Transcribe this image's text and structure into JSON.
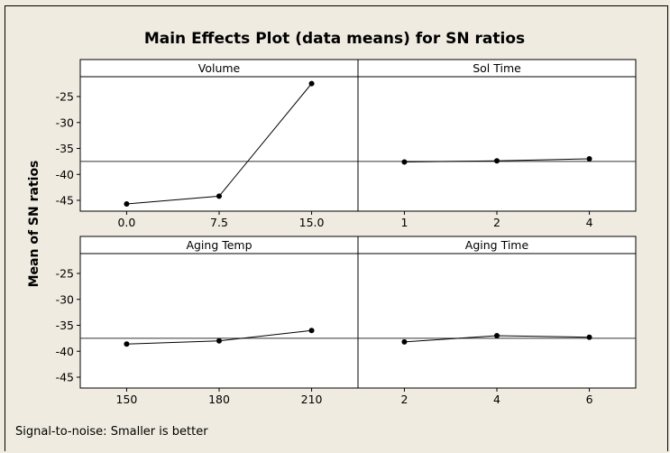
{
  "chart_data": {
    "type": "line",
    "title": "Main Effects Plot (data means) for SN ratios",
    "ylabel": "Mean of SN ratios",
    "footnote": "Signal-to-noise: Smaller is better",
    "ylim": [
      -47.5,
      -21
    ],
    "yticks": [
      -25,
      -30,
      -35,
      -40,
      -45
    ],
    "ytick_labels": [
      "-25",
      "-30",
      "-35",
      "-40",
      "-45"
    ],
    "reference_line": -37.5,
    "grid": false,
    "panels": [
      {
        "name": "Volume",
        "categories": [
          "0.0",
          "7.5",
          "15.0"
        ],
        "values": [
          -45.7,
          -44.2,
          -22.5
        ]
      },
      {
        "name": "Sol Time",
        "categories": [
          "1",
          "2",
          "4"
        ],
        "values": [
          -37.6,
          -37.4,
          -37.0
        ]
      },
      {
        "name": "Aging Temp",
        "categories": [
          "150",
          "180",
          "210"
        ],
        "values": [
          -38.6,
          -38.0,
          -36.0
        ]
      },
      {
        "name": "Aging Time",
        "categories": [
          "2",
          "4",
          "6"
        ],
        "values": [
          -38.2,
          -37.0,
          -37.3
        ]
      }
    ]
  }
}
